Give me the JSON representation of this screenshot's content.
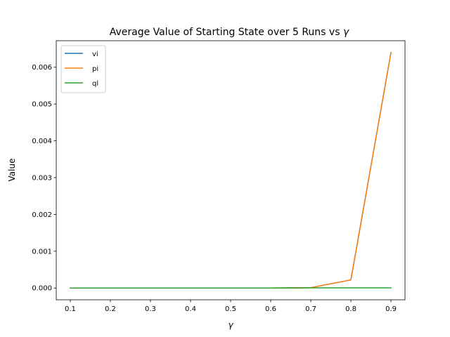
{
  "chart_data": {
    "type": "line",
    "title": "Average Value of Starting State over 5 Runs vs",
    "title_symbol": "γ",
    "xlabel": "γ",
    "ylabel": "Value",
    "x": [
      0.1,
      0.2,
      0.3,
      0.4,
      0.5,
      0.6,
      0.7,
      0.8,
      0.9
    ],
    "xlim": [
      0.065,
      0.935
    ],
    "ylim": [
      -0.00032,
      0.00672
    ],
    "xticks": [
      0.1,
      0.2,
      0.3,
      0.4,
      0.5,
      0.6,
      0.7,
      0.8,
      0.9
    ],
    "yticks": [
      0.0,
      0.001,
      0.002,
      0.003,
      0.004,
      0.005,
      0.006
    ],
    "xtick_labels": [
      "0.1",
      "0.2",
      "0.3",
      "0.4",
      "0.5",
      "0.6",
      "0.7",
      "0.8",
      "0.9"
    ],
    "ytick_labels": [
      "0.000",
      "0.001",
      "0.002",
      "0.003",
      "0.004",
      "0.005",
      "0.006"
    ],
    "grid": false,
    "legend_position": "top-left",
    "series": [
      {
        "name": "vi",
        "color": "#1f77b4",
        "values": [
          0,
          0,
          0,
          0,
          0,
          0,
          1e-05,
          0.00022,
          0.0064
        ]
      },
      {
        "name": "pi",
        "color": "#ff7f0e",
        "values": [
          0,
          0,
          0,
          0,
          0,
          0,
          1e-05,
          0.00022,
          0.0064
        ]
      },
      {
        "name": "ql",
        "color": "#2ca02c",
        "values": [
          0,
          0,
          0,
          0,
          0,
          0,
          5e-06,
          5e-06,
          5e-06
        ]
      }
    ]
  }
}
